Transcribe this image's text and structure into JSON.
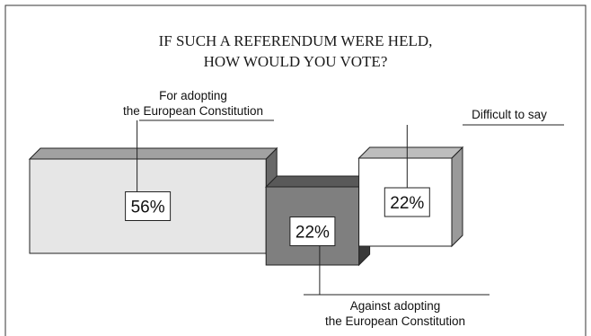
{
  "chart_data": {
    "type": "bar",
    "title_lines": [
      "IF SUCH A REFERENDUM WERE HELD,",
      "HOW WOULD YOU VOTE?"
    ],
    "categories": [
      [
        "For adopting",
        "the European Constitution"
      ],
      [
        "Against adopting",
        "the European Constitution"
      ],
      [
        "Difficult to say"
      ]
    ],
    "values": [
      56,
      22,
      22
    ],
    "value_labels": [
      "56%",
      "22%",
      "22%"
    ],
    "colors": [
      "#e6e6e6",
      "#7f7f7f",
      "#ffffff"
    ],
    "grid": false,
    "legend": "none"
  }
}
